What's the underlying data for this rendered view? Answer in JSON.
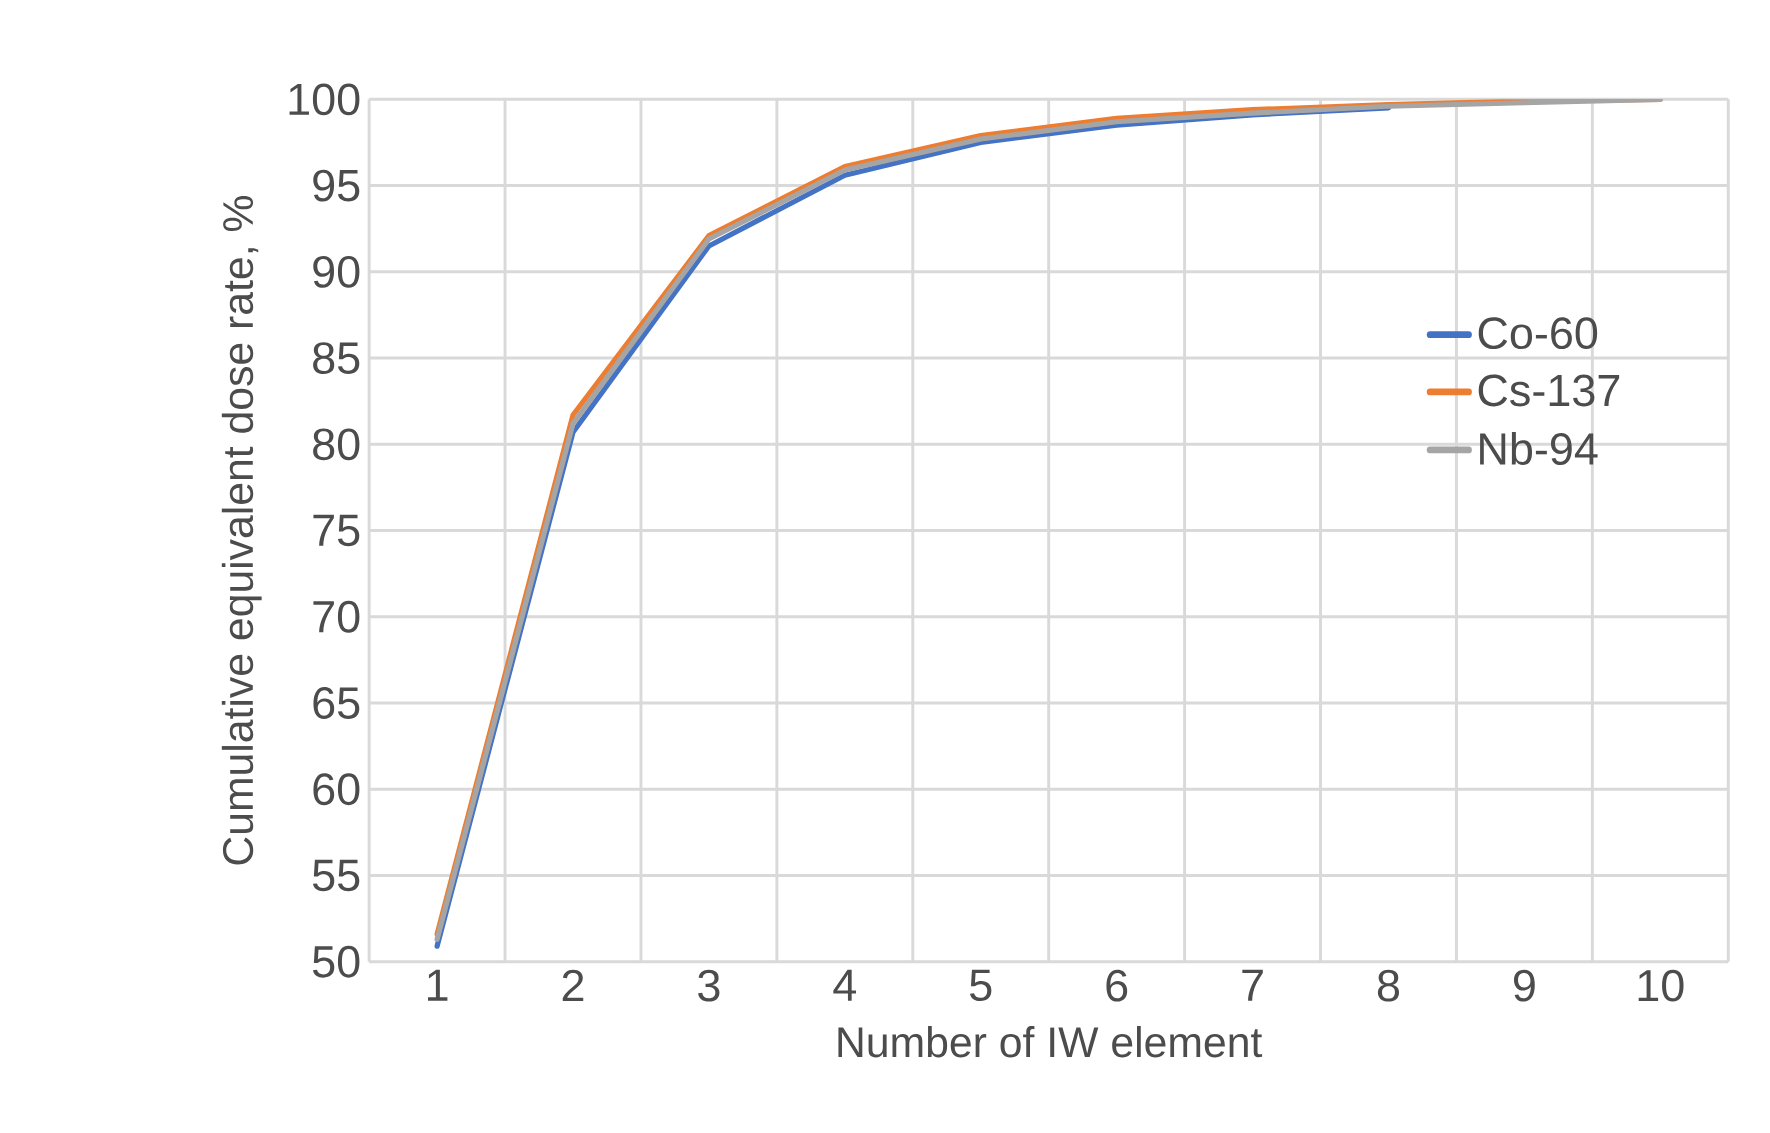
{
  "chart_data": {
    "type": "line",
    "xlabel": "Number of IW element",
    "ylabel": "Cumulative equivalent dose rate, %",
    "categories": [
      "1",
      "2",
      "3",
      "4",
      "5",
      "6",
      "7",
      "8",
      "9",
      "10"
    ],
    "series": [
      {
        "name": "Co-60",
        "color": "#4472c4",
        "values": [
          50.9,
          80.7,
          91.5,
          95.6,
          97.5,
          98.5,
          99.1,
          99.5,
          null,
          null
        ]
      },
      {
        "name": "Cs-137",
        "color": "#ed7d31",
        "values": [
          51.6,
          81.7,
          92.1,
          96.1,
          97.9,
          98.9,
          99.4,
          99.7,
          99.9,
          100
        ]
      },
      {
        "name": "Nb-94",
        "color": "#a5a5a5",
        "values": [
          51.3,
          81.2,
          91.9,
          95.9,
          97.7,
          98.7,
          99.2,
          99.6,
          99.8,
          100
        ]
      }
    ],
    "ylim": [
      50,
      100
    ],
    "yticks": [
      50,
      55,
      60,
      65,
      70,
      75,
      80,
      85,
      90,
      95,
      100
    ],
    "grid": true,
    "legend": "right",
    "line_style": "solid",
    "marker": "none"
  }
}
